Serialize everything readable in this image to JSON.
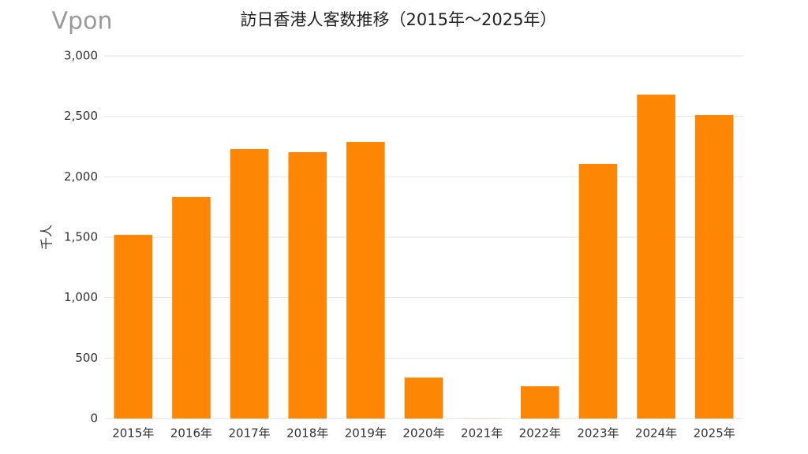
{
  "logo": "Vpon",
  "chart_data": {
    "type": "bar",
    "title": "訪日香港人客数推移（2015年～2025年）",
    "y_label": "千人",
    "categories": [
      "2015年",
      "2016年",
      "2017年",
      "2018年",
      "2019年",
      "2020年",
      "2021年",
      "2022年",
      "2023年",
      "2024年",
      "2025年"
    ],
    "values": [
      1520,
      1833,
      2230,
      2204,
      2289,
      339,
      1,
      267,
      2107,
      2680,
      2511
    ],
    "color": "#fd8705",
    "ylim": [
      0,
      3000
    ],
    "yticks": [
      0,
      500,
      {
        "value": 1000,
        "label": "1,000"
      },
      {
        "value": 1500,
        "label": "1,500"
      },
      {
        "value": 2000,
        "label": "2,000"
      },
      {
        "value": 2500,
        "label": "2,500"
      },
      {
        "value": 3000,
        "label": "3,000"
      }
    ],
    "grid": true
  }
}
